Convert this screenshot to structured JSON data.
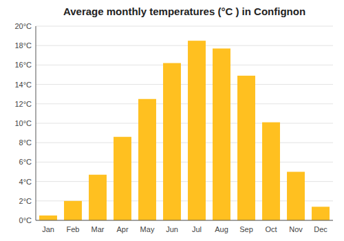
{
  "chart_data": {
    "type": "bar",
    "title": "Average monthly temperatures (°C ) in Confignon",
    "categories": [
      "Jan",
      "Feb",
      "Mar",
      "Apr",
      "May",
      "Jun",
      "Jul",
      "Aug",
      "Sep",
      "Oct",
      "Nov",
      "Dec"
    ],
    "values": [
      0.5,
      2.0,
      4.7,
      8.6,
      12.5,
      16.2,
      18.5,
      17.7,
      14.9,
      10.1,
      5.0,
      1.4
    ],
    "color": "#FFC020",
    "ylim": [
      0,
      20
    ],
    "yticks": [
      {
        "value": 0,
        "label": "0°C"
      },
      {
        "value": 2,
        "label": "2°C"
      },
      {
        "value": 4,
        "label": "4°C"
      },
      {
        "value": 6,
        "label": "6°C"
      },
      {
        "value": 8,
        "label": "8°C"
      },
      {
        "value": 10,
        "label": "10°C"
      },
      {
        "value": 12,
        "label": "12°C"
      },
      {
        "value": 14,
        "label": "14°C"
      },
      {
        "value": 16,
        "label": "16°C"
      },
      {
        "value": 18,
        "label": "18°C"
      },
      {
        "value": 20,
        "label": "20°C"
      }
    ],
    "grid": true
  }
}
